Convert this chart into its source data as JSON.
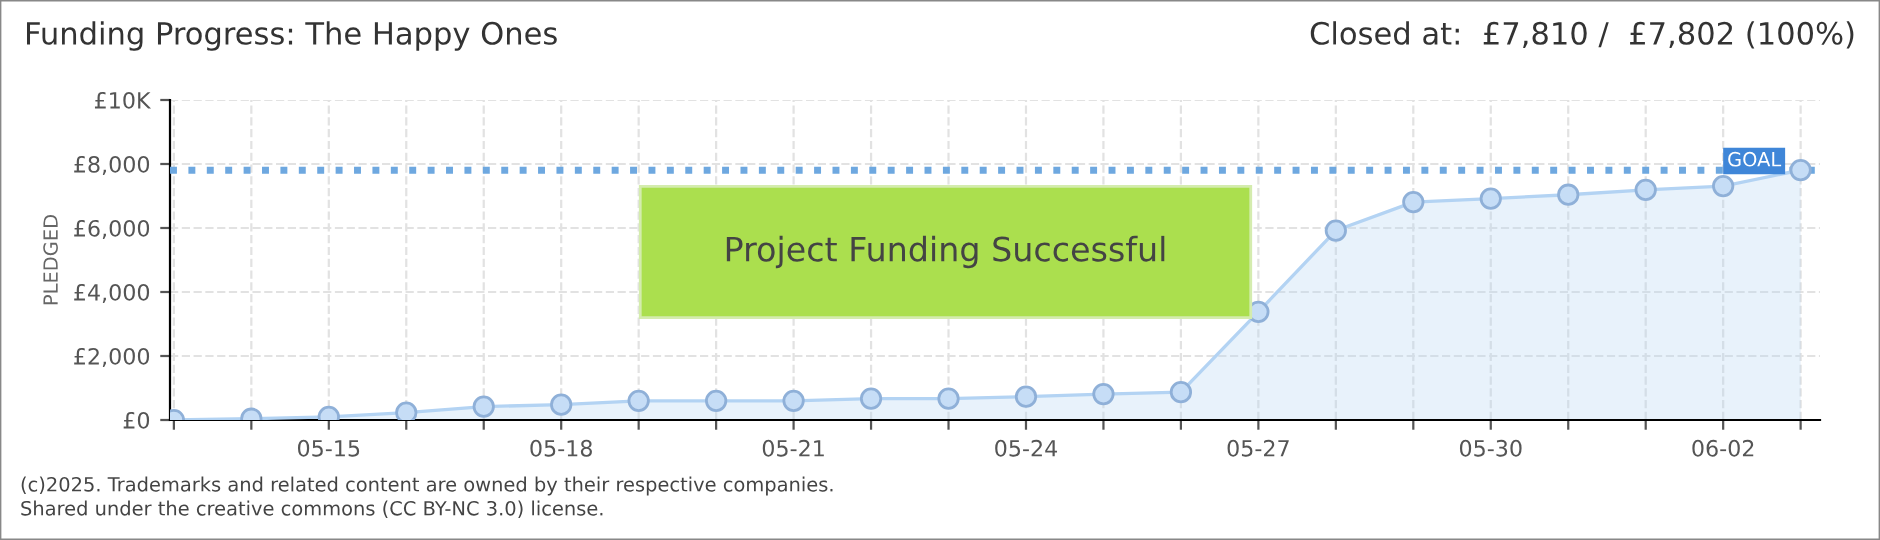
{
  "chart_data": {
    "type": "area",
    "title": "Funding Progress: The Happy Ones",
    "subtitle": "Closed at:  £7,810 /  £7,802 (100%)",
    "ylabel": "PLEDGED",
    "categories": [
      null,
      null,
      "05-15",
      null,
      null,
      "05-18",
      null,
      null,
      "05-21",
      null,
      null,
      "05-24",
      null,
      null,
      "05-27",
      null,
      null,
      "05-30",
      null,
      null,
      "06-02",
      null
    ],
    "series": [
      {
        "color": "#b3d3f3",
        "values": [
          0,
          40,
          100,
          230,
          420,
          480,
          600,
          600,
          600,
          670,
          670,
          730,
          810,
          870,
          3380,
          5920,
          6810,
          6920,
          7040,
          7190,
          7310,
          7810
        ]
      }
    ],
    "ylim": [
      0,
      10000
    ],
    "yticks": [
      {
        "value": 0,
        "label": "£0"
      },
      {
        "value": 2000,
        "label": "£2,000"
      },
      {
        "value": 4000,
        "label": "£4,000"
      },
      {
        "value": 6000,
        "label": "£6,000"
      },
      {
        "value": 8000,
        "label": "£8,000"
      },
      {
        "value": 10000,
        "label": "£10K"
      }
    ],
    "ref_lines": [
      {
        "axis": "y",
        "value": 7802,
        "label": "GOAL",
        "color": "#6ea8e0",
        "line_style": "dotted"
      }
    ],
    "marker": "circle",
    "grid": true,
    "legend": false,
    "annotations": [
      "Project Funding Successful",
      "(c)2025. Trademarks and related content are owned by their respective companies.",
      "Shared under the creative commons (CC BY-NC 3.0) license."
    ]
  }
}
